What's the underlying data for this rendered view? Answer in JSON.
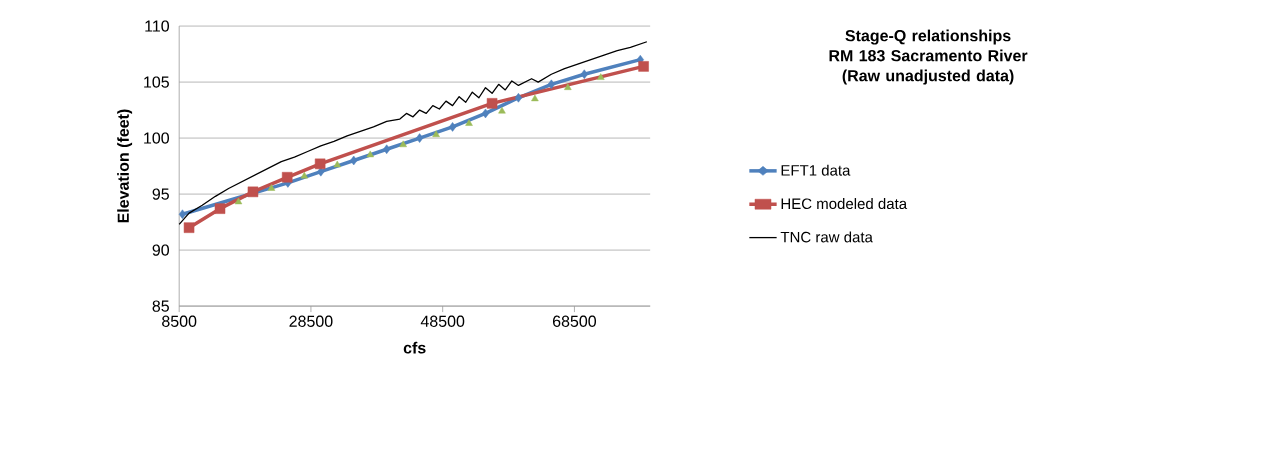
{
  "chart_data": {
    "type": "line",
    "title": "Stage-Q relationships",
    "subtitle": "RM 183 Sacramento River (Raw unadjusted data)",
    "xlabel": "cfs",
    "ylabel": "Elevation (feet)",
    "xlim": [
      8500,
      80000
    ],
    "ylim": [
      85,
      110
    ],
    "xticks": [
      8500,
      28500,
      48500,
      68500
    ],
    "yticks": [
      85,
      90,
      95,
      100,
      105,
      110
    ],
    "grid": "y",
    "legend": "right",
    "series": [
      {
        "name": "EFT1 data",
        "color": "#4f81bd",
        "marker": "diamond",
        "x": [
          9000,
          25000,
          30000,
          35000,
          40000,
          45000,
          50000,
          55000,
          60000,
          65000,
          70000,
          78500
        ],
        "values": [
          93.2,
          96.0,
          97.0,
          98.0,
          99.0,
          100.0,
          101.0,
          102.2,
          103.6,
          104.8,
          105.7,
          107.0
        ]
      },
      {
        "name": "HEC modeled data",
        "color": "#c0504d",
        "marker": "square",
        "x": [
          10000,
          14700,
          19700,
          24900,
          29900,
          56000,
          79000
        ],
        "values": [
          92.0,
          93.7,
          95.2,
          96.5,
          97.7,
          103.1,
          106.4
        ]
      },
      {
        "name": "TNC raw data",
        "color": "#000000",
        "marker": "none",
        "x": [
          8500,
          10000,
          12000,
          14000,
          16000,
          18000,
          20000,
          22000,
          24000,
          26000,
          28000,
          30000,
          32000,
          34000,
          36000,
          38000,
          40000,
          42000,
          43000,
          44000,
          45000,
          46000,
          47000,
          48000,
          49000,
          50000,
          51000,
          52000,
          53000,
          54000,
          55000,
          56000,
          57000,
          58000,
          59000,
          60000,
          62000,
          63000,
          65000,
          67000,
          69000,
          71000,
          73000,
          75000,
          77000,
          79500
        ],
        "values": [
          92.3,
          93.3,
          94.0,
          94.8,
          95.5,
          96.1,
          96.7,
          97.3,
          97.9,
          98.3,
          98.8,
          99.3,
          99.7,
          100.2,
          100.6,
          101.0,
          101.5,
          101.7,
          102.2,
          101.9,
          102.5,
          102.2,
          102.9,
          102.6,
          103.3,
          102.9,
          103.7,
          103.2,
          104.1,
          103.6,
          104.5,
          104.0,
          104.8,
          104.3,
          105.1,
          104.7,
          105.3,
          105.0,
          105.7,
          106.2,
          106.6,
          107.0,
          107.4,
          107.8,
          108.1,
          108.6
        ]
      },
      {
        "type": "scatter",
        "color": "#9bbb59",
        "marker": "triangle",
        "x": [
          17500,
          22500,
          27500,
          32500,
          37500,
          42500,
          47500,
          52500,
          57500,
          62500,
          67500,
          72500
        ],
        "values": [
          94.3,
          95.5,
          96.6,
          97.6,
          98.5,
          99.4,
          100.3,
          101.3,
          102.4,
          103.5,
          104.5,
          105.4
        ]
      }
    ]
  }
}
